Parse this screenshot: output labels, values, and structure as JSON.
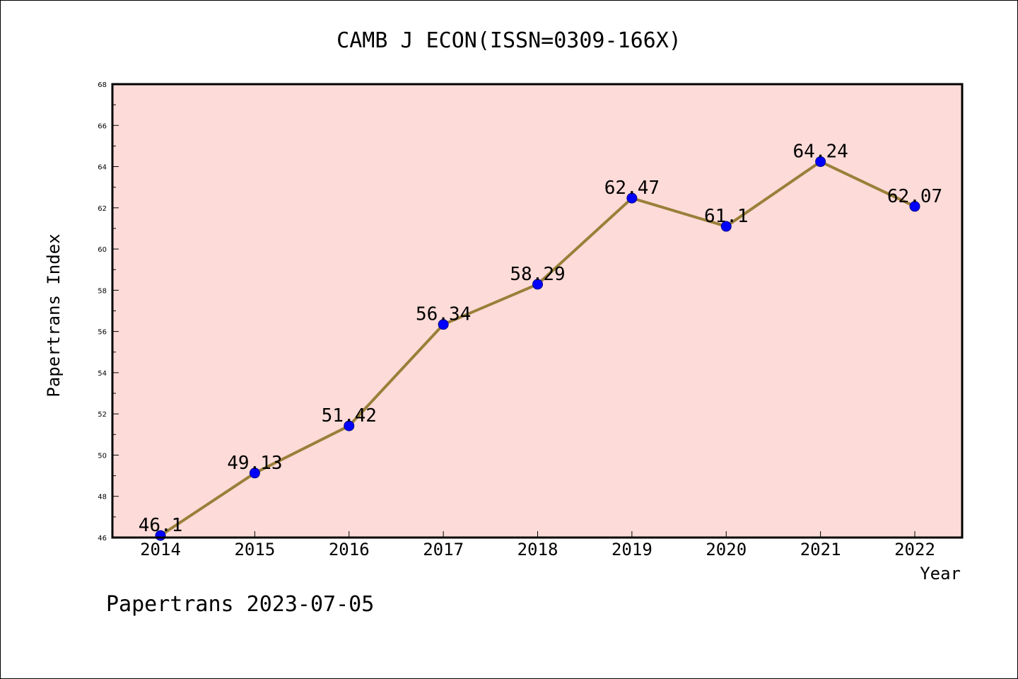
{
  "chart_data": {
    "type": "line",
    "title": "CAMB J ECON(ISSN=0309-166X)",
    "xlabel": "Year",
    "ylabel": "Papertrans Index",
    "categories": [
      "2014",
      "2015",
      "2016",
      "2017",
      "2018",
      "2019",
      "2020",
      "2021",
      "2022"
    ],
    "series": [
      {
        "values": [
          46.1,
          49.13,
          51.42,
          56.34,
          58.29,
          62.47,
          61.1,
          64.24,
          62.07
        ],
        "labels": [
          "46.1",
          "49.13",
          "51.42",
          "56.34",
          "58.29",
          "62.47",
          "61.1",
          "64.24",
          "62.07"
        ]
      }
    ],
    "yticks": [
      "46",
      "48",
      "50",
      "52",
      "54",
      "56",
      "58",
      "60",
      "62",
      "64",
      "66",
      "68"
    ],
    "ylim": [
      46,
      68
    ],
    "grid": false,
    "legend": "none",
    "colors": {
      "plot_background": "#fddbd8",
      "line": "#9a7f3a",
      "marker": "#0000ff",
      "axes": "#000000"
    }
  },
  "footer": {
    "text": "Papertrans 2023-07-05"
  }
}
